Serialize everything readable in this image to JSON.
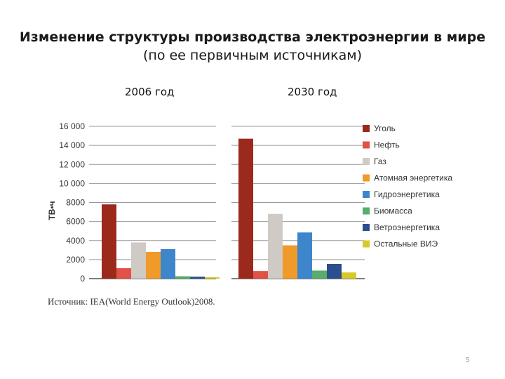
{
  "slide": {
    "title": "Изменение структуры производства электроэнергии в мире",
    "subtitle": "(по ее первичным источникам)",
    "source": "Источник: IEA(World Energy Outlook)2008.",
    "page_number": "5"
  },
  "chart_data": {
    "type": "bar",
    "ylabel": "ТВ•ч",
    "ylim": [
      0,
      16000
    ],
    "y_ticks": [
      "16 000",
      "14 000",
      "12 000",
      "10 000",
      "8000",
      "6000",
      "4000",
      "2000",
      "0"
    ],
    "y_tick_values": [
      16000,
      14000,
      12000,
      10000,
      8000,
      6000,
      4000,
      2000,
      0
    ],
    "grid": true,
    "legend_position": "right",
    "categories": [
      "2006 год",
      "2030 год"
    ],
    "series": [
      {
        "name": "Уголь",
        "color": "#9b2a1c",
        "values": [
          7800,
          14700
        ]
      },
      {
        "name": "Нефть",
        "color": "#e15246",
        "values": [
          1100,
          800
        ]
      },
      {
        "name": "Газ",
        "color": "#cfcac3",
        "values": [
          3800,
          6800
        ]
      },
      {
        "name": "Атомная энергетика",
        "color": "#f09a2a",
        "values": [
          2800,
          3500
        ]
      },
      {
        "name": "Гидроэнергетика",
        "color": "#3d86cc",
        "values": [
          3100,
          4850
        ]
      },
      {
        "name": "Биомасса",
        "color": "#56ad6c",
        "values": [
          250,
          850
        ]
      },
      {
        "name": "Ветроэнергетика",
        "color": "#2b4f8e",
        "values": [
          200,
          1550
        ]
      },
      {
        "name": "Остальные ВИЭ",
        "color": "#d8c92a",
        "values": [
          150,
          650
        ]
      }
    ]
  }
}
